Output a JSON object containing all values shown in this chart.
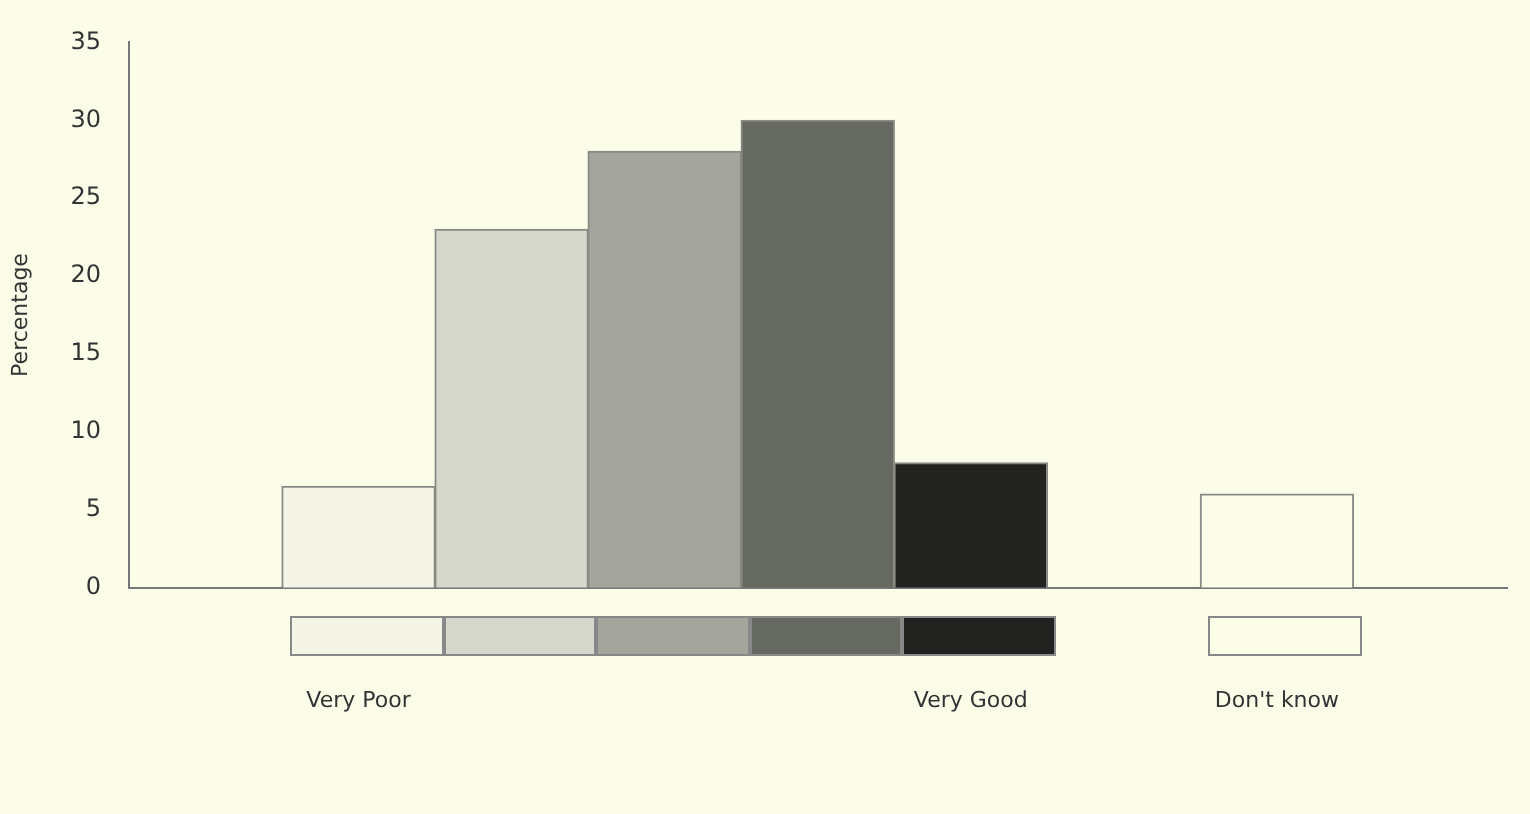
{
  "chart_data": {
    "type": "bar",
    "ylabel": "Percentage",
    "categories": [
      null,
      "Very Poor",
      null,
      null,
      null,
      "Very Good",
      null,
      "Don't know",
      null
    ],
    "values": [
      null,
      6.5,
      23,
      28,
      30,
      8,
      null,
      6,
      null
    ],
    "colors": [
      null,
      "#f4f5e6",
      "#d6d8cc",
      "#a4a69e",
      "#666862",
      "#222220",
      null,
      "#fcfde9",
      null
    ],
    "ylim": [
      0,
      35
    ],
    "yticks": [
      0,
      5,
      10,
      15,
      20,
      25,
      30,
      35
    ],
    "grid": false,
    "legend": false
  }
}
